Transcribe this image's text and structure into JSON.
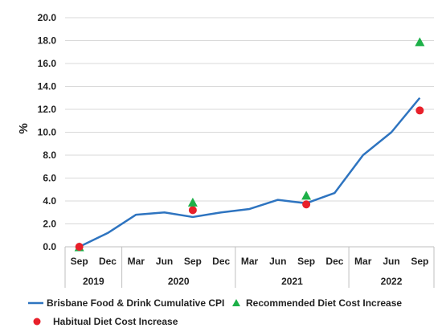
{
  "chart_data": {
    "type": "line",
    "ylabel": "%",
    "ylim": [
      0,
      20
    ],
    "yticks": [
      "0.0",
      "2.0",
      "4.0",
      "6.0",
      "8.0",
      "10.0",
      "12.0",
      "14.0",
      "16.0",
      "18.0",
      "20.0"
    ],
    "grid": "horizontal",
    "categories": [
      "Sep",
      "Dec",
      "Mar",
      "Jun",
      "Sep",
      "Dec",
      "Mar",
      "Jun",
      "Sep",
      "Dec",
      "Mar",
      "Jun",
      "Sep"
    ],
    "year_groups": [
      {
        "label": "2019",
        "start": 0,
        "end": 1
      },
      {
        "label": "2020",
        "start": 2,
        "end": 5
      },
      {
        "label": "2021",
        "start": 6,
        "end": 9
      },
      {
        "label": "2022",
        "start": 10,
        "end": 12
      }
    ],
    "series": [
      {
        "name": "Brisbane Food & Drink Cumulative CPI",
        "kind": "line",
        "color": "#2e74c0",
        "values": [
          0.0,
          1.2,
          2.8,
          3.0,
          2.6,
          3.0,
          3.3,
          4.1,
          3.8,
          4.7,
          8.0,
          10.0,
          13.0
        ]
      },
      {
        "name": "Recommended Diet Cost Increase",
        "kind": "marker",
        "marker": "triangle",
        "color": "#1db048",
        "points": [
          {
            "index": 0,
            "value": 0.0
          },
          {
            "index": 4,
            "value": 3.9
          },
          {
            "index": 8,
            "value": 4.5
          },
          {
            "index": 12,
            "value": 17.9
          }
        ]
      },
      {
        "name": "Habitual Diet Cost Increase",
        "kind": "marker",
        "marker": "circle",
        "color": "#e8202a",
        "points": [
          {
            "index": 0,
            "value": 0.0
          },
          {
            "index": 4,
            "value": 3.2
          },
          {
            "index": 8,
            "value": 3.7
          },
          {
            "index": 12,
            "value": 11.9
          }
        ]
      }
    ],
    "legend_placement": "bottom"
  }
}
